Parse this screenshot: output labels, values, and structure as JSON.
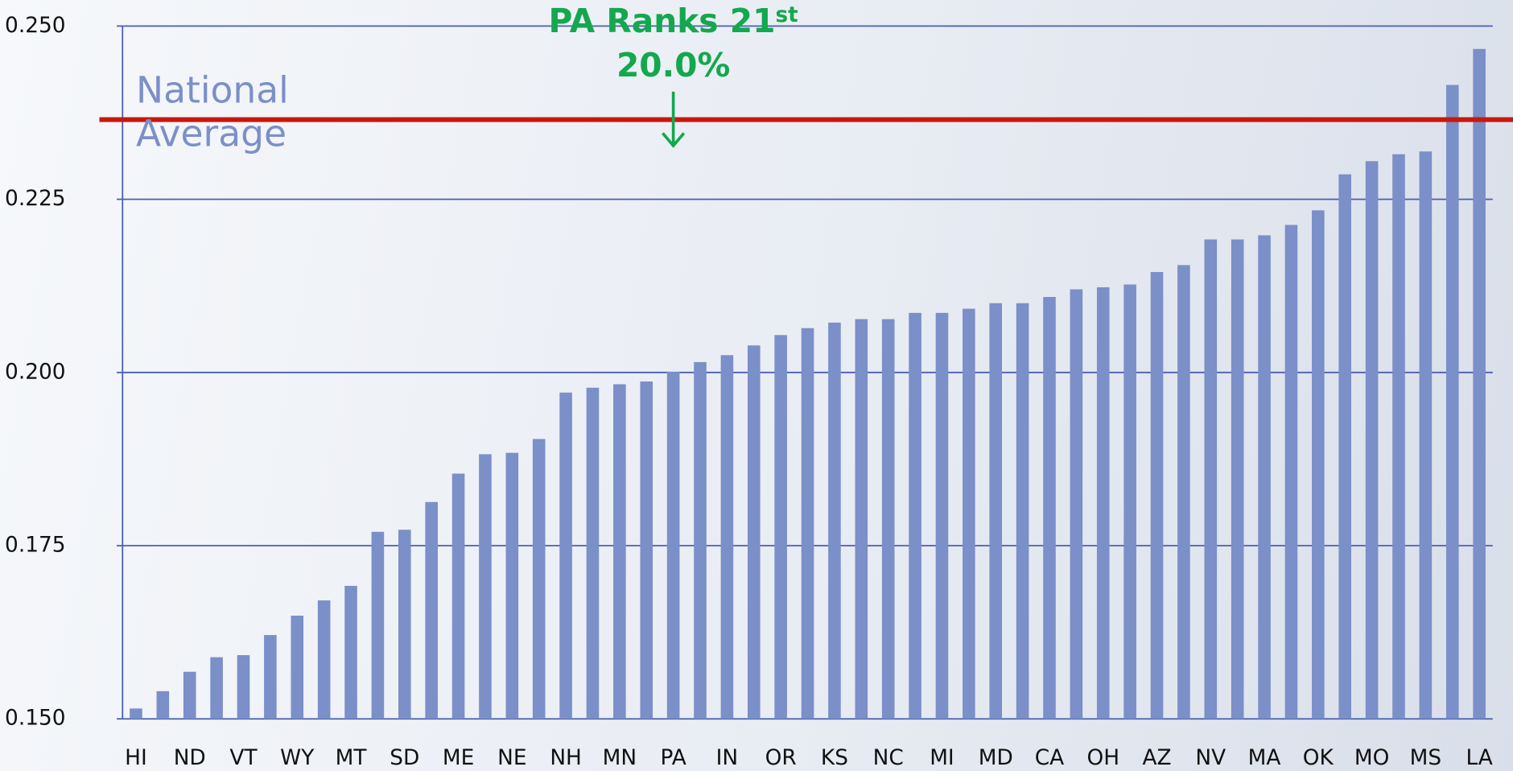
{
  "chart_data": {
    "type": "bar",
    "categories": [
      "HI",
      null,
      "ND",
      null,
      "VT",
      null,
      "WY",
      null,
      "MT",
      null,
      "SD",
      null,
      "ME",
      null,
      "NE",
      null,
      "NH",
      null,
      "MN",
      null,
      "PA",
      null,
      "IN",
      null,
      "OR",
      null,
      "KS",
      null,
      "NC",
      null,
      "MI",
      null,
      "MD",
      null,
      "CA",
      null,
      "OH",
      null,
      "AZ",
      null,
      "NV",
      null,
      "MA",
      null,
      "OK",
      null,
      "MO",
      null,
      "MS",
      null,
      "LA"
    ],
    "values": [
      0.1515,
      0.154,
      0.1568,
      0.1589,
      0.1592,
      0.1621,
      0.1649,
      0.1671,
      0.1692,
      0.177,
      0.1773,
      0.1813,
      0.1854,
      0.1882,
      0.1884,
      0.1904,
      0.1971,
      0.1978,
      0.1983,
      0.1987,
      0.2001,
      0.2015,
      0.2025,
      0.2039,
      0.2054,
      0.2064,
      0.2072,
      0.2077,
      0.2077,
      0.2086,
      0.2086,
      0.2092,
      0.21,
      0.21,
      0.2109,
      0.212,
      0.2123,
      0.2127,
      0.2145,
      0.2155,
      0.2192,
      0.2192,
      0.2198,
      0.2213,
      0.2234,
      0.2286,
      0.2305,
      0.2315,
      0.2319,
      0.2415,
      0.2467
    ],
    "color": "#7b8fc8",
    "ylim": [
      0.15,
      0.25
    ],
    "yticks": [
      {
        "value": 0.15,
        "label": "0.150"
      },
      {
        "value": 0.175,
        "label": "0.175"
      },
      {
        "value": 0.2,
        "label": "0.200"
      },
      {
        "value": 0.225,
        "label": "0.225"
      },
      {
        "value": 0.25,
        "label": "0.250"
      }
    ],
    "grid": true,
    "reference_line": {
      "value": 0.2365,
      "label": [
        "National",
        "Average"
      ],
      "color": "#c8180c"
    },
    "annotation": {
      "text": "PA Ranks 21",
      "sup": "st",
      "value_text": "20.0%",
      "color": "#13a84e",
      "category_index": 20
    }
  }
}
